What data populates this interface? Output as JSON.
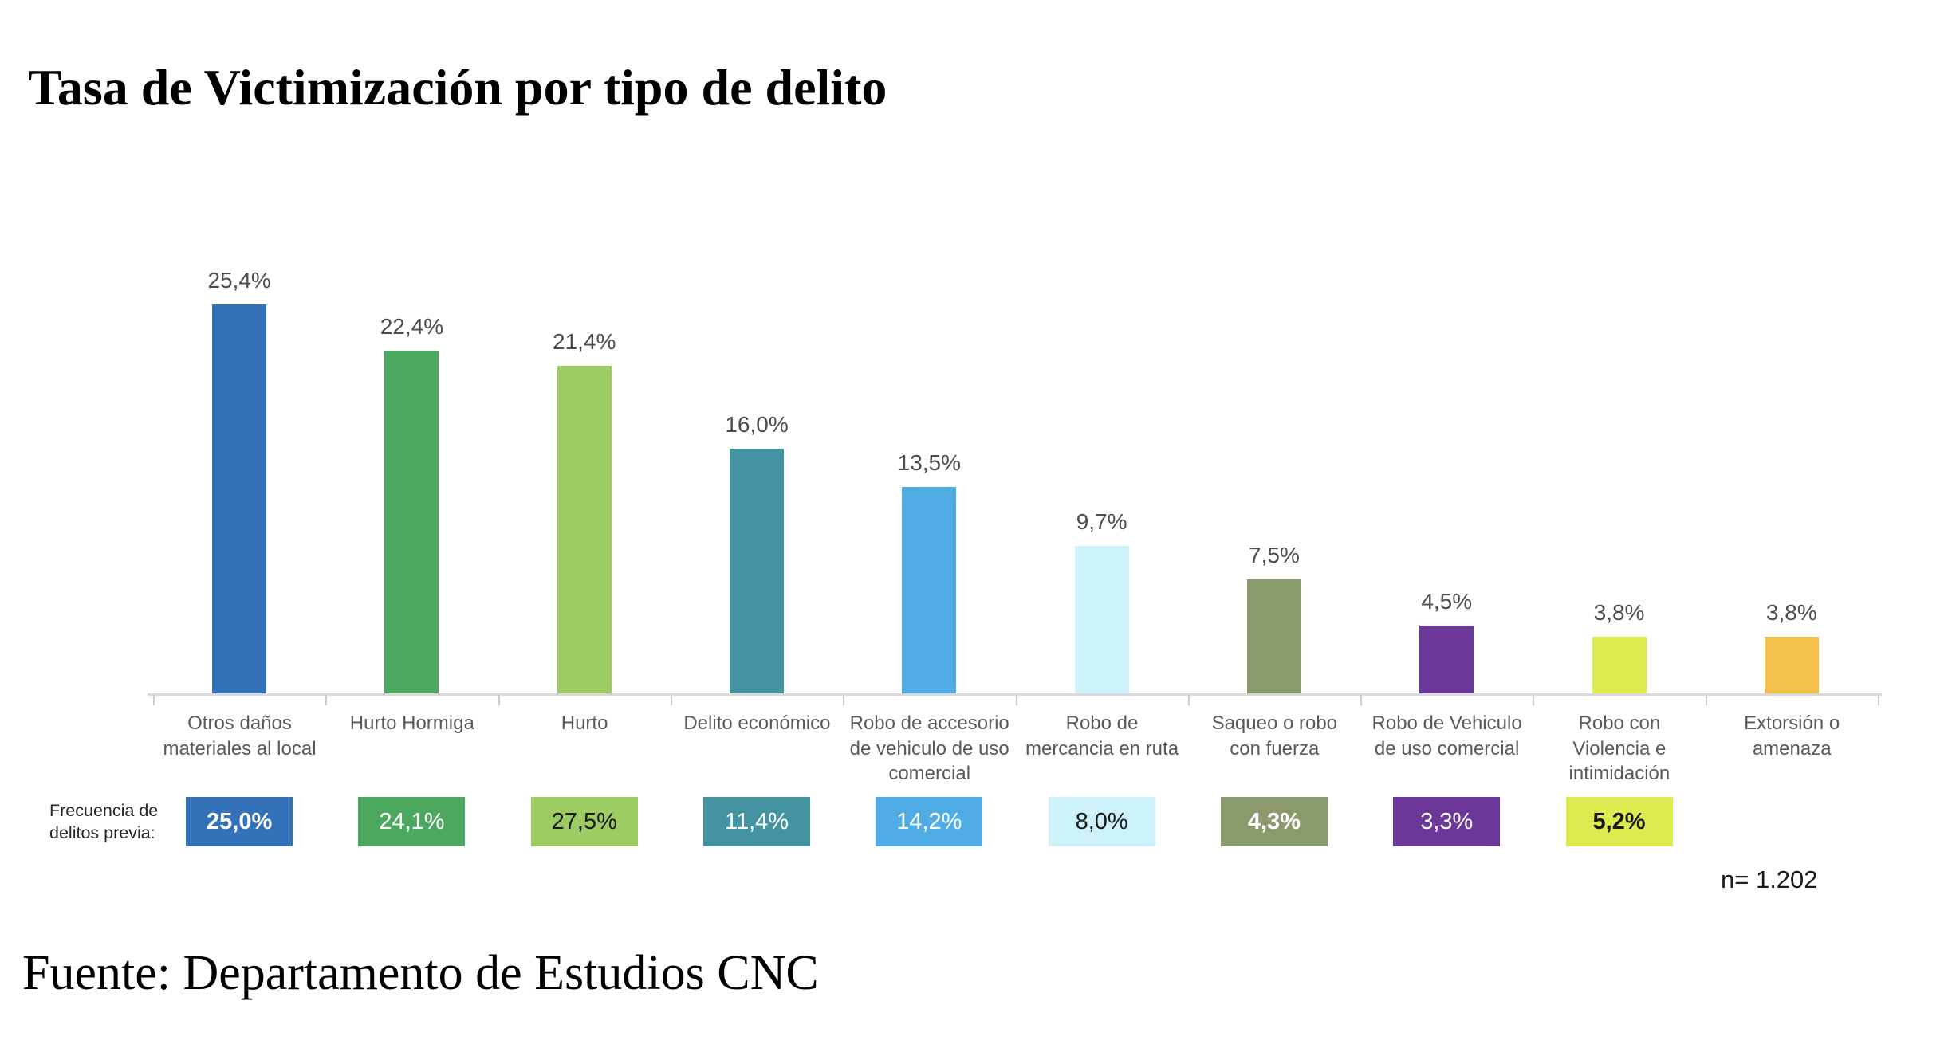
{
  "title": "Tasa de Victimización por tipo de delito",
  "footer": "Fuente: Departamento de Estudios CNC",
  "sample_note": "n= 1.202",
  "frequency_row_label": "Frecuencia de\ndelitos previa:",
  "chart_data": {
    "type": "bar",
    "title": "Tasa de Victimización por tipo de delito",
    "unit": "%",
    "ylim": [
      0,
      28
    ],
    "grid": false,
    "legend_position": "none",
    "categories": [
      "Otros daños\nmateriales al local",
      "Hurto Hormiga",
      "Hurto",
      "Delito económico",
      "Robo de accesorio\nde vehiculo de uso\ncomercial",
      "Robo de\nmercancia en ruta",
      "Saqueo o robo\ncon fuerza",
      "Robo de Vehiculo\nde uso comercial",
      "Robo con\nViolencia e\nintimidación",
      "Extorsión o\namenaza"
    ],
    "series": [
      {
        "name": "Tasa de victimización",
        "values": [
          25.4,
          22.4,
          21.4,
          16.0,
          13.5,
          9.7,
          7.5,
          4.5,
          3.8,
          3.8
        ],
        "labels": [
          "25,4%",
          "22,4%",
          "21,4%",
          "16,0%",
          "13,5%",
          "9,7%",
          "7,5%",
          "4,5%",
          "3,8%",
          "3,8%"
        ]
      },
      {
        "name": "Frecuencia de delitos previa",
        "values": [
          25.0,
          24.1,
          27.5,
          11.4,
          14.2,
          8.0,
          4.3,
          3.3,
          5.2,
          null
        ],
        "labels": [
          "25,0%",
          "24,1%",
          "27,5%",
          "11,4%",
          "14,2%",
          "8,0%",
          "4,3%",
          "3,3%",
          "5,2%",
          null
        ]
      }
    ],
    "colors": [
      "#3372B8",
      "#4CA75F",
      "#9DCB64",
      "#4493A1",
      "#4FACE4",
      "#CDF2FA",
      "#8B9A6D",
      "#6B3799",
      "#DCEC4F",
      "#F2C14B"
    ],
    "badge_text_colors": [
      "#FFFFFF",
      "#FFFFFF",
      "#1A1A1A",
      "#FFFFFF",
      "#FFFFFF",
      "#1A1A1A",
      "#FFFFFF",
      "#FFFFFF",
      "#1A1A1A",
      null
    ],
    "badge_bold": [
      true,
      false,
      false,
      false,
      false,
      false,
      true,
      false,
      true,
      null
    ],
    "value_label_color": "#4D4D4D",
    "category_label_color": "#595959",
    "axis_color": "#D9D9D9"
  }
}
